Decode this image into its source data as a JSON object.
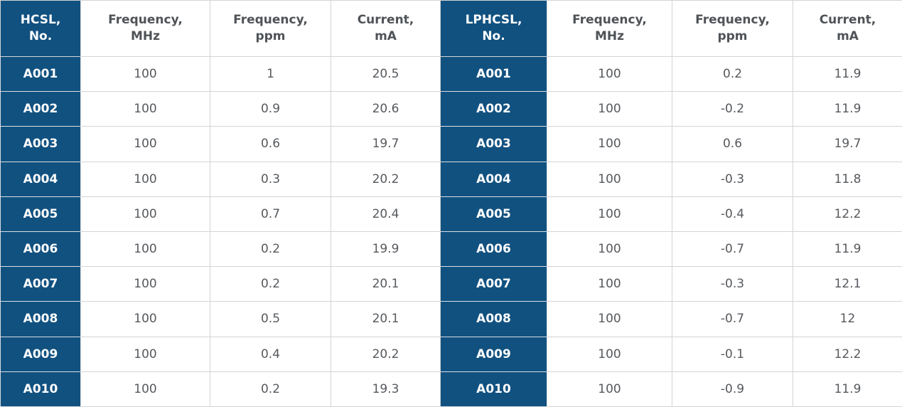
{
  "colors": {
    "accent_blue": "#115180",
    "border_gray": "#d4d4d4",
    "header_text": "#4f5357",
    "cell_text": "#56595d",
    "label_text": "#fdfdfd",
    "cell_background": "#ffffff"
  },
  "chart_data": {
    "type": "table",
    "tables": [
      {
        "id": "hcsl",
        "columns": [
          "HCSL, No.",
          "Frequency, MHz",
          "Frequency, ppm",
          "Current, mA"
        ],
        "rows": [
          [
            "A001",
            "100",
            "1",
            "20.5"
          ],
          [
            "A002",
            "100",
            "0.9",
            "20.6"
          ],
          [
            "A003",
            "100",
            "0.6",
            "19.7"
          ],
          [
            "A004",
            "100",
            "0.3",
            "20.2"
          ],
          [
            "A005",
            "100",
            "0.7",
            "20.4"
          ],
          [
            "A006",
            "100",
            "0.2",
            "19.9"
          ],
          [
            "A007",
            "100",
            "0.2",
            "20.1"
          ],
          [
            "A008",
            "100",
            "0.5",
            "20.1"
          ],
          [
            "A009",
            "100",
            "0.4",
            "20.2"
          ],
          [
            "A010",
            "100",
            "0.2",
            "19.3"
          ]
        ]
      },
      {
        "id": "lphcsl",
        "columns": [
          "LPHCSL, No.",
          "Frequency, MHz",
          "Frequency, ppm",
          "Current, mA"
        ],
        "rows": [
          [
            "A001",
            "100",
            "0.2",
            "11.9"
          ],
          [
            "A002",
            "100",
            "-0.2",
            "11.9"
          ],
          [
            "A003",
            "100",
            "0.6",
            "19.7"
          ],
          [
            "A004",
            "100",
            "-0.3",
            "11.8"
          ],
          [
            "A005",
            "100",
            "-0.4",
            "12.2"
          ],
          [
            "A006",
            "100",
            "-0.7",
            "11.9"
          ],
          [
            "A007",
            "100",
            "-0.3",
            "12.1"
          ],
          [
            "A008",
            "100",
            "-0.7",
            "12"
          ],
          [
            "A009",
            "100",
            "-0.1",
            "12.2"
          ],
          [
            "A010",
            "100",
            "-0.9",
            "11.9"
          ]
        ]
      }
    ]
  }
}
